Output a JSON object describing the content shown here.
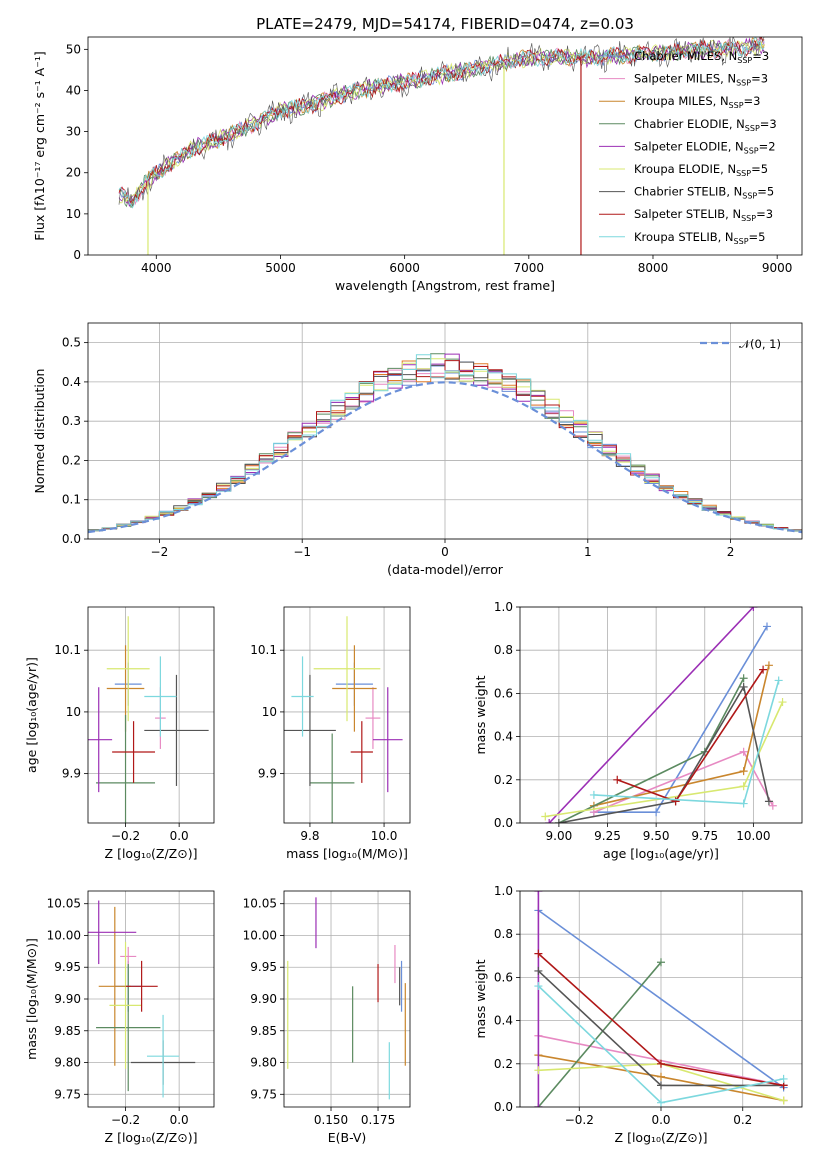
{
  "title": "PLATE=2479, MJD=54174, FIBERID=0474, z=0.03",
  "series_colors": [
    "#6a8fd8",
    "#e78ac3",
    "#c9862d",
    "#5b8a60",
    "#9b2fb5",
    "#d8e870",
    "#555555",
    "#b01818",
    "#7dd8de"
  ],
  "hist_colors": [
    "#6a8fd8",
    "#e78ac3",
    "#e07b2a",
    "#5b8a60",
    "#9b2fb5",
    "#d8e870",
    "#555555",
    "#b01818",
    "#7dd8de"
  ],
  "chart_data": [
    {
      "type": "line",
      "id": "spectrum",
      "xlabel": "wavelength [Angstrom, rest frame]",
      "ylabel": "Flux [fλ10⁻¹⁷ erg cm⁻² s⁻¹ A⁻¹]",
      "xlim": [
        3450,
        9200
      ],
      "ylim": [
        0,
        53
      ],
      "xticks": [
        4000,
        5000,
        6000,
        7000,
        8000,
        9000
      ],
      "yticks": [
        0,
        10,
        20,
        30,
        40,
        50
      ],
      "x_range": [
        3700,
        8900
      ],
      "continuum_x": [
        3700,
        3800,
        3900,
        4000,
        4100,
        4300,
        4500,
        4800,
        5000,
        5300,
        5600,
        6000,
        6500,
        7000,
        7500,
        8000,
        8500,
        8900
      ],
      "continuum_y": [
        15,
        13,
        17,
        20,
        22,
        26,
        28,
        32,
        35,
        37,
        40,
        42,
        45,
        48,
        48,
        49,
        50,
        51
      ],
      "dips": [
        {
          "x": 3933,
          "y": 0,
          "series": 5
        },
        {
          "x": 6800,
          "y": 0,
          "series": 5
        },
        {
          "x": 7420,
          "y": 0,
          "series": 7
        }
      ],
      "legend": [
        {
          "name": "Chabrier MILES",
          "n": "3"
        },
        {
          "name": "Salpeter MILES",
          "n": "3"
        },
        {
          "name": "Kroupa MILES",
          "n": "3"
        },
        {
          "name": "Chabrier ELODIE",
          "n": "3"
        },
        {
          "name": "Salpeter ELODIE",
          "n": "2"
        },
        {
          "name": "Kroupa ELODIE",
          "n": "5"
        },
        {
          "name": "Chabrier STELIB",
          "n": "5"
        },
        {
          "name": "Salpeter STELIB",
          "n": "3"
        },
        {
          "name": "Kroupa STELIB",
          "n": "5"
        }
      ],
      "legend_nssp_label": "N",
      "legend_nssp_sub": "SSP"
    },
    {
      "type": "histogram",
      "id": "residuals",
      "xlabel": "(data-model)/error",
      "ylabel": "Normed distribution",
      "xlim": [
        -2.5,
        2.5
      ],
      "ylim": [
        0,
        0.55
      ],
      "xticks": [
        -2,
        -1,
        0,
        1,
        2
      ],
      "xticklabels": [
        "−2",
        "−1",
        "0",
        "1",
        "2"
      ],
      "yticks": [
        0.0,
        0.1,
        0.2,
        0.3,
        0.4,
        0.5
      ],
      "yticklabels": [
        "0.0",
        "0.1",
        "0.2",
        "0.3",
        "0.4",
        "0.5"
      ],
      "bin_width": 0.1,
      "legend": "𝒩(0, 1)"
    },
    {
      "type": "errorbar",
      "id": "age-vs-Z",
      "xlabel": "Z [log₁₀(Z/Z⊙)]",
      "ylabel": "age  [log₁₀(age/yr)]",
      "xlim": [
        -0.34,
        0.13
      ],
      "ylim": [
        9.82,
        10.17
      ],
      "xticks": [
        -0.2,
        0.0
      ],
      "xticklabels": [
        "−0.2",
        "0.0"
      ],
      "yticks": [
        9.9,
        10.0,
        10.1
      ],
      "points": [
        {
          "s": 0,
          "x": -0.19,
          "y": 10.045,
          "xerr": 0.05,
          "yerr": 0.035
        },
        {
          "s": 1,
          "x": -0.07,
          "y": 9.99,
          "xerr": 0.02,
          "yerr": 0.05
        },
        {
          "s": 2,
          "x": -0.2,
          "y": 10.038,
          "xerr": 0.07,
          "yerr": 0.07
        },
        {
          "s": 3,
          "x": -0.2,
          "y": 9.885,
          "xerr": 0.11,
          "yerr": 0.11
        },
        {
          "s": 4,
          "x": -0.3,
          "y": 9.955,
          "xerr": 0.05,
          "yerr": 0.085
        },
        {
          "s": 5,
          "x": -0.19,
          "y": 10.07,
          "xerr": 0.08,
          "yerr": 0.085
        },
        {
          "s": 6,
          "x": -0.01,
          "y": 9.97,
          "xerr": 0.12,
          "yerr": 0.09
        },
        {
          "s": 7,
          "x": -0.17,
          "y": 9.935,
          "xerr": 0.08,
          "yerr": 0.05
        },
        {
          "s": 8,
          "x": -0.07,
          "y": 10.025,
          "xerr": 0.06,
          "yerr": 0.065
        }
      ]
    },
    {
      "type": "errorbar",
      "id": "age-vs-mass",
      "xlabel": "mass [log₁₀(M/M⊙)]",
      "ylabel": "",
      "xlim": [
        9.73,
        10.07
      ],
      "ylim": [
        9.82,
        10.17
      ],
      "xticks": [
        9.8,
        10.0
      ],
      "xticklabels": [
        "9.8",
        "10.0"
      ],
      "yticks": [
        9.9,
        10.0,
        10.1
      ],
      "points": [
        {
          "s": 0,
          "x": 9.92,
          "y": 10.045,
          "xerr": 0.05,
          "yerr": 0.035
        },
        {
          "s": 1,
          "x": 9.97,
          "y": 9.99,
          "xerr": 0.02,
          "yerr": 0.05
        },
        {
          "s": 2,
          "x": 9.92,
          "y": 10.038,
          "xerr": 0.06,
          "yerr": 0.07
        },
        {
          "s": 3,
          "x": 9.86,
          "y": 9.885,
          "xerr": 0.06,
          "yerr": 0.08
        },
        {
          "s": 4,
          "x": 10.01,
          "y": 9.955,
          "xerr": 0.04,
          "yerr": 0.085
        },
        {
          "s": 5,
          "x": 9.9,
          "y": 10.07,
          "xerr": 0.09,
          "yerr": 0.085
        },
        {
          "s": 6,
          "x": 9.8,
          "y": 9.97,
          "xerr": 0.07,
          "yerr": 0.09
        },
        {
          "s": 7,
          "x": 9.94,
          "y": 9.935,
          "xerr": 0.03,
          "yerr": 0.05
        },
        {
          "s": 8,
          "x": 9.78,
          "y": 10.025,
          "xerr": 0.03,
          "yerr": 0.065
        }
      ]
    },
    {
      "type": "line",
      "id": "weight-vs-age",
      "xlabel": "age  [log₁₀(age/yr)]",
      "ylabel": "mass weight",
      "xlim": [
        8.8,
        10.25
      ],
      "ylim": [
        0,
        1.0
      ],
      "xticks": [
        9.0,
        9.25,
        9.5,
        9.75,
        10.0
      ],
      "xticklabels": [
        "9.00",
        "9.25",
        "9.50",
        "9.75",
        "10.00"
      ],
      "yticks": [
        0,
        0.2,
        0.4,
        0.6,
        0.8,
        1.0
      ],
      "yticklabels": [
        "0.0",
        "0.2",
        "0.4",
        "0.6",
        "0.8",
        "1.0"
      ],
      "series": [
        {
          "s": 0,
          "x": [
            9.18,
            9.5,
            10.07
          ],
          "y": [
            0.05,
            0.05,
            0.91
          ]
        },
        {
          "s": 1,
          "x": [
            9.18,
            9.95,
            10.1
          ],
          "y": [
            0.05,
            0.33,
            0.08
          ]
        },
        {
          "s": 2,
          "x": [
            9.18,
            9.95,
            10.08
          ],
          "y": [
            0.08,
            0.24,
            0.73
          ]
        },
        {
          "s": 3,
          "x": [
            9.0,
            9.75,
            9.95
          ],
          "y": [
            0.0,
            0.33,
            0.67
          ]
        },
        {
          "s": 4,
          "x": [
            8.95,
            10.0
          ],
          "y": [
            0.0,
            1.0
          ]
        },
        {
          "s": 5,
          "x": [
            8.93,
            9.95,
            10.15
          ],
          "y": [
            0.03,
            0.17,
            0.56
          ]
        },
        {
          "s": 6,
          "x": [
            9.0,
            9.6,
            9.95,
            10.08
          ],
          "y": [
            0.0,
            0.1,
            0.63,
            0.1
          ]
        },
        {
          "s": 7,
          "x": [
            9.3,
            9.6,
            10.05
          ],
          "y": [
            0.2,
            0.1,
            0.71
          ]
        },
        {
          "s": 8,
          "x": [
            9.18,
            9.95,
            10.13
          ],
          "y": [
            0.13,
            0.09,
            0.66
          ]
        }
      ]
    },
    {
      "type": "errorbar",
      "id": "mass-vs-Z",
      "xlabel": "Z [log₁₀(Z/Z⊙)]",
      "ylabel": "mass [log₁₀(M/M⊙)]",
      "xlim": [
        -0.34,
        0.13
      ],
      "ylim": [
        9.73,
        10.07
      ],
      "xticks": [
        -0.2,
        0.0
      ],
      "xticklabels": [
        "−0.2",
        "0.0"
      ],
      "yticks": [
        9.75,
        9.8,
        9.85,
        9.9,
        9.95,
        10.0,
        10.05
      ],
      "yticklabels": [
        "9.75",
        "9.80",
        "9.85",
        "9.90",
        "9.95",
        "10.00",
        "10.05"
      ],
      "points": [
        {
          "s": 0,
          "x": -0.19,
          "y": 9.92,
          "xerr": 0.05,
          "yerr": 0.04
        },
        {
          "s": 1,
          "x": -0.19,
          "y": 9.967,
          "xerr": 0.03,
          "yerr": 0.015
        },
        {
          "s": 2,
          "x": -0.24,
          "y": 9.92,
          "xerr": 0.06,
          "yerr": 0.125
        },
        {
          "s": 3,
          "x": -0.19,
          "y": 9.855,
          "xerr": 0.12,
          "yerr": 0.1
        },
        {
          "s": 4,
          "x": -0.3,
          "y": 10.005,
          "xerr": 0.14,
          "yerr": 0.05
        },
        {
          "s": 5,
          "x": -0.2,
          "y": 9.89,
          "xerr": 0.06,
          "yerr": 0.1
        },
        {
          "s": 6,
          "x": -0.06,
          "y": 9.8,
          "xerr": 0.12,
          "yerr": 0.035
        },
        {
          "s": 7,
          "x": -0.14,
          "y": 9.92,
          "xerr": 0.06,
          "yerr": 0.04
        },
        {
          "s": 8,
          "x": -0.06,
          "y": 9.81,
          "xerr": 0.06,
          "yerr": 0.065
        }
      ]
    },
    {
      "type": "errorbar",
      "id": "mass-vs-ebv",
      "xlabel": "E(B-V)",
      "ylabel": "",
      "xlim": [
        0.125,
        0.192
      ],
      "ylim": [
        9.73,
        10.07
      ],
      "xticks": [
        0.15,
        0.175
      ],
      "xticklabels": [
        "0.150",
        "0.175"
      ],
      "yticks": [
        9.75,
        9.8,
        9.85,
        9.9,
        9.95,
        10.0,
        10.05
      ],
      "yticklabels": [
        "9.75",
        "9.80",
        "9.85",
        "9.90",
        "9.95",
        "10.00",
        "10.05"
      ],
      "points": [
        {
          "s": 0,
          "x": 0.1875,
          "y": 9.92,
          "xerr": 0,
          "yerr": 0.04
        },
        {
          "s": 1,
          "x": 0.184,
          "y": 9.955,
          "xerr": 0,
          "yerr": 0.03
        },
        {
          "s": 2,
          "x": 0.1895,
          "y": 9.86,
          "xerr": 0,
          "yerr": 0.065
        },
        {
          "s": 3,
          "x": 0.1615,
          "y": 9.86,
          "xerr": 0,
          "yerr": 0.06
        },
        {
          "s": 4,
          "x": 0.142,
          "y": 10.02,
          "xerr": 0,
          "yerr": 0.04
        },
        {
          "s": 5,
          "x": 0.127,
          "y": 9.875,
          "xerr": 0,
          "yerr": 0.085
        },
        {
          "s": 6,
          "x": 0.1865,
          "y": 9.92,
          "xerr": 0,
          "yerr": 0.03
        },
        {
          "s": 7,
          "x": 0.175,
          "y": 9.925,
          "xerr": 0,
          "yerr": 0.03
        },
        {
          "s": 8,
          "x": 0.181,
          "y": 9.787,
          "xerr": 0,
          "yerr": 0.045
        }
      ]
    },
    {
      "type": "line",
      "id": "weight-vs-Z",
      "xlabel": "Z [log₁₀(Z/Z⊙)]",
      "ylabel": "mass weight",
      "xlim": [
        -0.345,
        0.345
      ],
      "ylim": [
        0,
        1.0
      ],
      "xticks": [
        -0.2,
        0.0,
        0.2
      ],
      "xticklabels": [
        "−0.2",
        "0.0",
        "0.2"
      ],
      "yticks": [
        0,
        0.2,
        0.4,
        0.6,
        0.8,
        1.0
      ],
      "yticklabels": [
        "0.0",
        "0.2",
        "0.4",
        "0.6",
        "0.8",
        "1.0"
      ],
      "series": [
        {
          "s": 0,
          "x": [
            -0.3,
            0.3
          ],
          "y": [
            0.91,
            0.09
          ]
        },
        {
          "s": 1,
          "x": [
            -0.3,
            0.3
          ],
          "y": [
            0.33,
            0.1
          ]
        },
        {
          "s": 2,
          "x": [
            -0.3,
            0.0,
            0.3
          ],
          "y": [
            0.24,
            0.14,
            0.03
          ]
        },
        {
          "s": 3,
          "x": [
            -0.3,
            0.0
          ],
          "y": [
            0.0,
            0.67
          ]
        },
        {
          "s": 4,
          "x": [
            -0.3,
            -0.3
          ],
          "y": [
            0.0,
            1.0
          ]
        },
        {
          "s": 5,
          "x": [
            -0.3,
            0.0,
            0.3
          ],
          "y": [
            0.17,
            0.2,
            0.03
          ]
        },
        {
          "s": 6,
          "x": [
            -0.3,
            0.0,
            0.3
          ],
          "y": [
            0.63,
            0.1,
            0.1
          ]
        },
        {
          "s": 7,
          "x": [
            -0.3,
            0.0,
            0.3
          ],
          "y": [
            0.71,
            0.2,
            0.1
          ]
        },
        {
          "s": 8,
          "x": [
            -0.3,
            0.0,
            0.3
          ],
          "y": [
            0.56,
            0.02,
            0.13
          ]
        }
      ]
    }
  ]
}
